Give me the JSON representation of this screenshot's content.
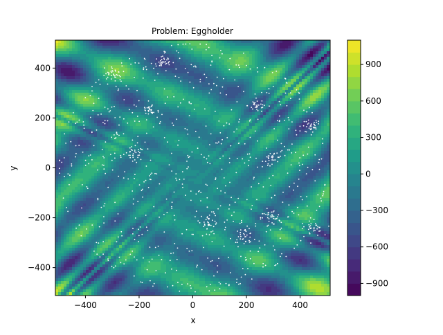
{
  "chart_data": {
    "type": "heatmap",
    "title": "Problem: Eggholder",
    "xlabel": "x",
    "ylabel": "y",
    "xlim": [
      -512,
      512
    ],
    "ylim": [
      -512,
      512
    ],
    "x_ticks": [
      -400,
      -200,
      0,
      200,
      400
    ],
    "x_tick_labels": [
      "−400",
      "−200",
      "0",
      "200",
      "400"
    ],
    "y_ticks": [
      -400,
      -200,
      0,
      200,
      400
    ],
    "y_tick_labels": [
      "−400",
      "−200",
      "0",
      "200",
      "400"
    ],
    "colormap": "viridis",
    "colorbar": {
      "range": [
        -1000,
        1100
      ],
      "ticks": [
        -900,
        -600,
        -300,
        0,
        300,
        600,
        900
      ],
      "tick_labels": [
        "−900",
        "−600",
        "−300",
        "0",
        "300",
        "600",
        "900"
      ],
      "levels": 21
    },
    "function": "Eggholder",
    "samples": {
      "marker_color": "#ffffff",
      "region": "disc centered near (0,0) radius ~500",
      "clusters": [
        {
          "x": -110,
          "y": 425
        },
        {
          "x": 240,
          "y": 250
        },
        {
          "x": 440,
          "y": 165
        },
        {
          "x": -220,
          "y": 55
        },
        {
          "x": 300,
          "y": 40
        },
        {
          "x": 60,
          "y": -210
        },
        {
          "x": 190,
          "y": -270
        },
        {
          "x": 450,
          "y": -245
        },
        {
          "x": -300,
          "y": 380
        },
        {
          "x": 290,
          "y": -200
        },
        {
          "x": -160,
          "y": 230
        }
      ]
    }
  }
}
